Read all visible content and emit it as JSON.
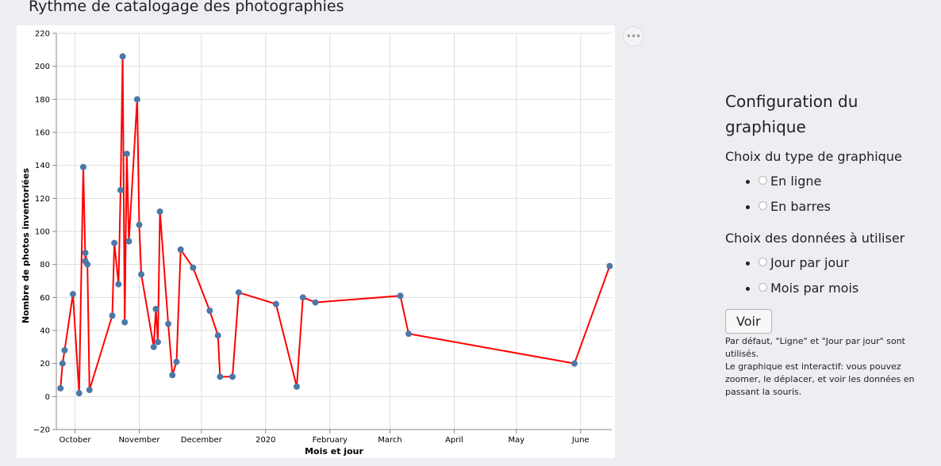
{
  "page": {
    "title": "Rythme de catalogage des photographies"
  },
  "config": {
    "heading": "Configuration du graphique",
    "chart_type_label": "Choix du type de graphique",
    "chart_type_options": [
      "En ligne",
      "En barres"
    ],
    "data_label": "Choix des données à utiliser",
    "data_options": [
      "Jour par jour",
      "Mois par mois"
    ],
    "submit_label": "Voir",
    "help_line1": "Par défaut, \"Ligne\" et \"Jour par jour\" sont utilisés.",
    "help_line2": "Le graphique est interactif: vous pouvez zoomer, le déplacer, et voir les données en passant la souris."
  },
  "colors": {
    "line": "#ff0000",
    "point": "#4c78a8",
    "grid": "#dddddd"
  },
  "chart_data": {
    "type": "line",
    "title": "",
    "xlabel": "Mois et jour",
    "ylabel": "Nombre de photos inventoriées",
    "ylim": [
      -20,
      220
    ],
    "xlim": [
      "2019-09-22",
      "2020-06-16"
    ],
    "x_ticks": [
      {
        "date": "2019-10-01",
        "label": "October"
      },
      {
        "date": "2019-11-01",
        "label": "November"
      },
      {
        "date": "2019-12-01",
        "label": "December"
      },
      {
        "date": "2020-01-01",
        "label": "2020"
      },
      {
        "date": "2020-02-01",
        "label": "February"
      },
      {
        "date": "2020-03-01",
        "label": "March"
      },
      {
        "date": "2020-04-01",
        "label": "April"
      },
      {
        "date": "2020-05-01",
        "label": "May"
      },
      {
        "date": "2020-06-01",
        "label": "June"
      }
    ],
    "y_ticks": [
      -20,
      0,
      20,
      40,
      60,
      80,
      100,
      120,
      140,
      160,
      180,
      200,
      220
    ],
    "grid": true,
    "series": [
      {
        "points": [
          {
            "x": "2019-09-24",
            "y": 5
          },
          {
            "x": "2019-09-25",
            "y": 20
          },
          {
            "x": "2019-09-26",
            "y": 28
          },
          {
            "x": "2019-09-30",
            "y": 62
          },
          {
            "x": "2019-10-03",
            "y": 2
          },
          {
            "x": "2019-10-05",
            "y": 139
          },
          {
            "x": "2019-10-06",
            "y": 82
          },
          {
            "x": "2019-10-06",
            "y": 87
          },
          {
            "x": "2019-10-07",
            "y": 80
          },
          {
            "x": "2019-10-08",
            "y": 4
          },
          {
            "x": "2019-10-19",
            "y": 49
          },
          {
            "x": "2019-10-20",
            "y": 93
          },
          {
            "x": "2019-10-22",
            "y": 68
          },
          {
            "x": "2019-10-23",
            "y": 125
          },
          {
            "x": "2019-10-24",
            "y": 206
          },
          {
            "x": "2019-10-25",
            "y": 45
          },
          {
            "x": "2019-10-26",
            "y": 147
          },
          {
            "x": "2019-10-27",
            "y": 94
          },
          {
            "x": "2019-10-31",
            "y": 180
          },
          {
            "x": "2019-11-01",
            "y": 104
          },
          {
            "x": "2019-11-02",
            "y": 74
          },
          {
            "x": "2019-11-08",
            "y": 30
          },
          {
            "x": "2019-11-09",
            "y": 53
          },
          {
            "x": "2019-11-10",
            "y": 33
          },
          {
            "x": "2019-11-11",
            "y": 112
          },
          {
            "x": "2019-11-15",
            "y": 44
          },
          {
            "x": "2019-11-17",
            "y": 13
          },
          {
            "x": "2019-11-19",
            "y": 21
          },
          {
            "x": "2019-11-21",
            "y": 89
          },
          {
            "x": "2019-11-27",
            "y": 78
          },
          {
            "x": "2019-12-05",
            "y": 52
          },
          {
            "x": "2019-12-09",
            "y": 37
          },
          {
            "x": "2019-12-10",
            "y": 12
          },
          {
            "x": "2019-12-16",
            "y": 12
          },
          {
            "x": "2019-12-19",
            "y": 63
          },
          {
            "x": "2020-01-06",
            "y": 56
          },
          {
            "x": "2020-01-16",
            "y": 6
          },
          {
            "x": "2020-01-19",
            "y": 60
          },
          {
            "x": "2020-01-25",
            "y": 57
          },
          {
            "x": "2020-03-06",
            "y": 61
          },
          {
            "x": "2020-03-10",
            "y": 38
          },
          {
            "x": "2020-05-29",
            "y": 20
          },
          {
            "x": "2020-06-15",
            "y": 79
          }
        ]
      }
    ]
  }
}
